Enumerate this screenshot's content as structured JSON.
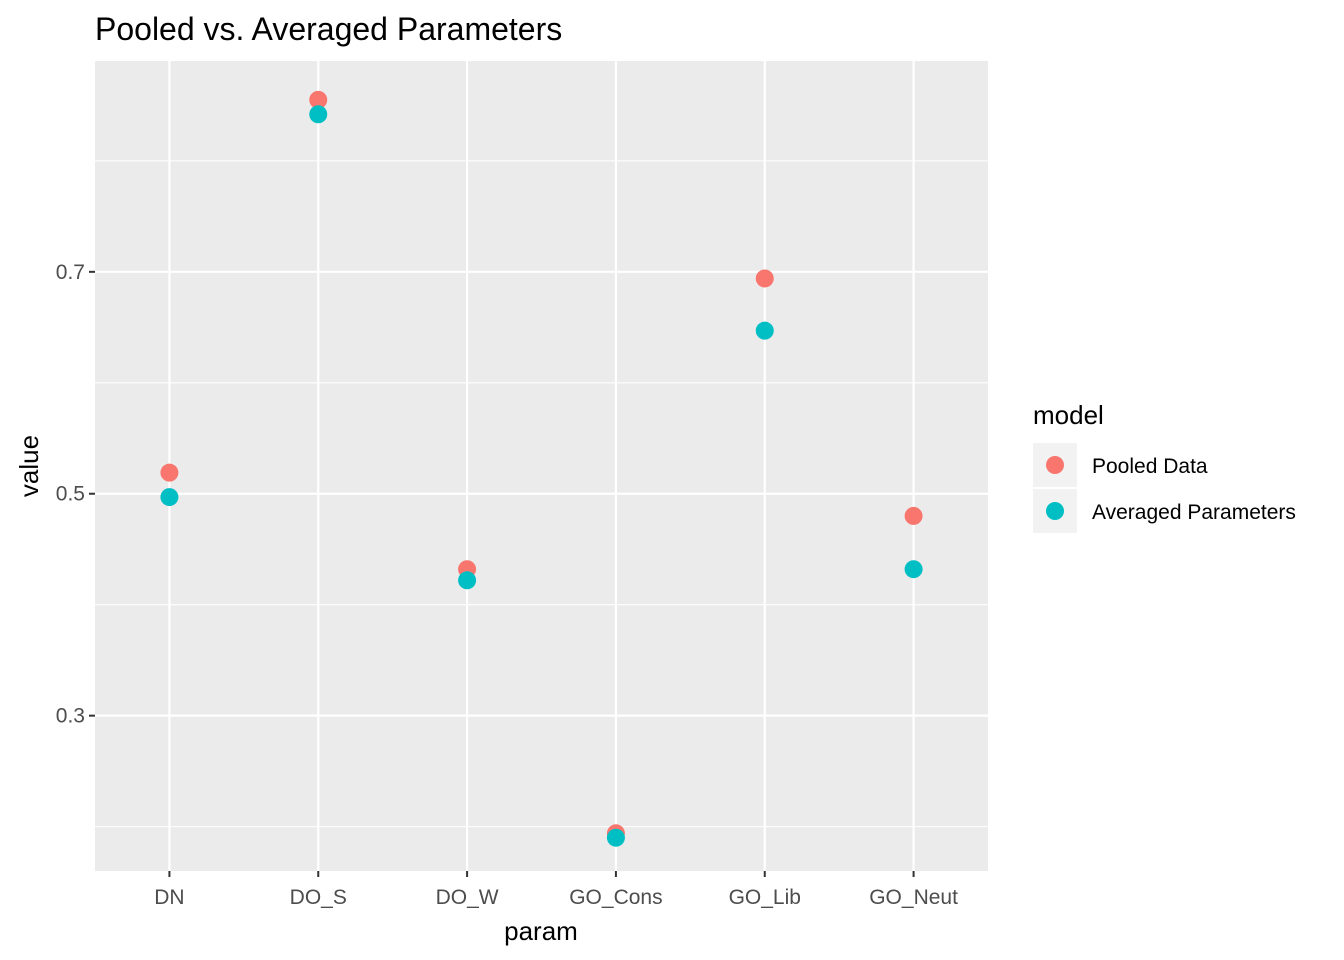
{
  "chart_data": {
    "type": "scatter",
    "title": "Pooled vs. Averaged Parameters",
    "xlabel": "param",
    "ylabel": "value",
    "categories": [
      "DN",
      "DO_S",
      "DO_W",
      "GO_Cons",
      "GO_Lib",
      "GO_Neut"
    ],
    "y_ticks": [
      "0.3",
      "0.5",
      "0.7"
    ],
    "ylim": [
      0.16,
      0.89
    ],
    "grid": true,
    "legend": {
      "title": "model",
      "position": "right"
    },
    "series": [
      {
        "name": "Pooled Data",
        "color": "#F8766D",
        "values": [
          0.519,
          0.855,
          0.432,
          0.194,
          0.694,
          0.48
        ]
      },
      {
        "name": "Averaged Parameters",
        "color": "#00BFC4",
        "values": [
          0.497,
          0.842,
          0.422,
          0.19,
          0.647,
          0.432
        ]
      }
    ],
    "panel_background": "#EBEBEB",
    "grid_color": "#FFFFFF"
  }
}
